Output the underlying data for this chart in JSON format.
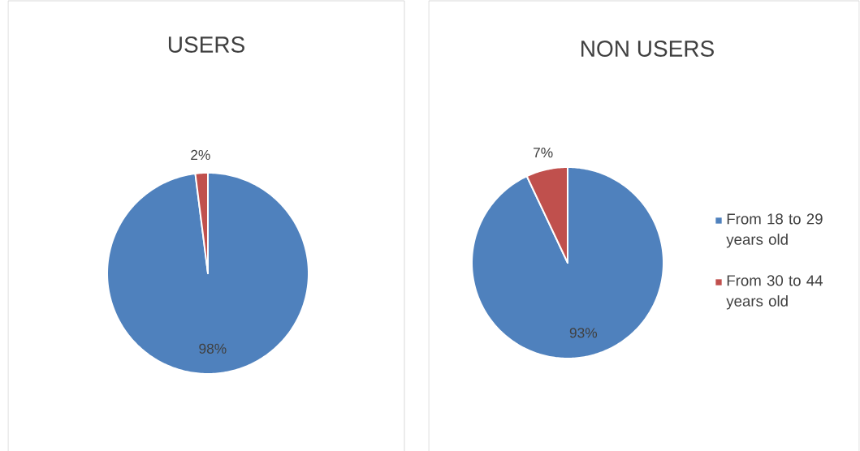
{
  "chart_data": [
    {
      "type": "pie",
      "title": "USERS",
      "categories": [
        null,
        null
      ],
      "values": [
        98,
        2
      ],
      "colors": [
        "#4f81bd",
        "#c0504d"
      ],
      "value_labels": [
        "98%",
        "2%"
      ]
    },
    {
      "type": "pie",
      "title": "NON USERS",
      "categories": [
        "From 18 to 29 years old",
        "From 30 to 44 years old"
      ],
      "values": [
        93,
        7
      ],
      "colors": [
        "#4f81bd",
        "#c0504d"
      ],
      "value_labels": [
        "93%",
        "7%"
      ],
      "legend": "right"
    }
  ]
}
